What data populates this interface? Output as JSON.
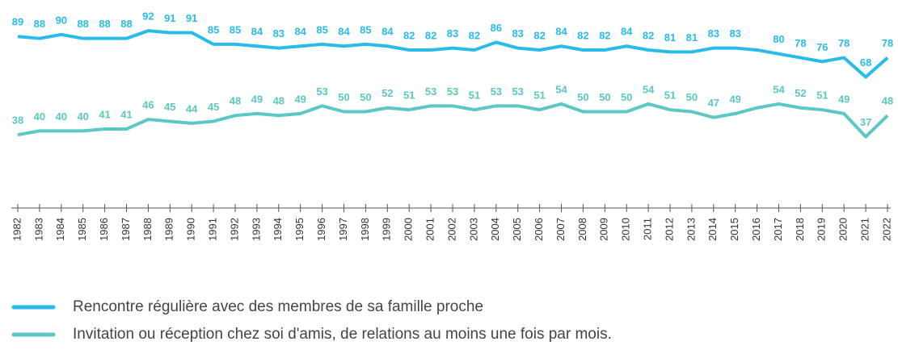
{
  "chart_data": {
    "type": "line",
    "x": [
      1982,
      1983,
      1984,
      1985,
      1986,
      1987,
      1988,
      1989,
      1990,
      1991,
      1992,
      1993,
      1994,
      1995,
      1996,
      1997,
      1998,
      1999,
      2000,
      2001,
      2002,
      2003,
      2004,
      2005,
      2006,
      2007,
      2008,
      2009,
      2010,
      2011,
      2012,
      2013,
      2014,
      2015,
      2016,
      2017,
      2018,
      2019,
      2020,
      2021,
      2022
    ],
    "xlim": [
      1982,
      2022
    ],
    "ylim": [
      0,
      100
    ],
    "grid": false,
    "legend": "bottom",
    "series": [
      {
        "name": "Rencontre régulière avec des membres de sa famille proche",
        "color": "#29bbe9",
        "values": [
          89,
          88,
          90,
          88,
          88,
          88,
          92,
          91,
          91,
          85,
          85,
          84,
          83,
          84,
          85,
          84,
          85,
          84,
          82,
          82,
          83,
          82,
          86,
          83,
          82,
          84,
          82,
          82,
          84,
          82,
          81,
          81,
          83,
          83,
          82,
          80,
          78,
          76,
          78,
          68,
          78
        ],
        "value_labels": [
          "89",
          "88",
          "90",
          "88",
          "88",
          "88",
          "92",
          "91",
          "91",
          "85",
          "85",
          "84",
          "83",
          "84",
          "85",
          "84",
          "85",
          "84",
          "82",
          "82",
          "83",
          "82",
          "86",
          "83",
          "82",
          "84",
          "82",
          "82",
          "84",
          "82",
          "81",
          "81",
          "83",
          "83",
          null,
          "80",
          "78",
          "76",
          "78",
          "68",
          "78"
        ]
      },
      {
        "name": "Invitation ou réception chez soi d'amis, de relations au moins une fois par mois.",
        "color": "#5bc8c3",
        "values": [
          38,
          40,
          40,
          40,
          41,
          41,
          46,
          45,
          44,
          45,
          48,
          49,
          48,
          49,
          53,
          50,
          50,
          52,
          51,
          53,
          53,
          51,
          53,
          53,
          51,
          54,
          50,
          50,
          50,
          54,
          51,
          50,
          47,
          49,
          52,
          54,
          52,
          51,
          49,
          37,
          48
        ],
        "value_labels": [
          "38",
          "40",
          "40",
          "40",
          "41",
          "41",
          "46",
          "45",
          "44",
          "45",
          "48",
          "49",
          "48",
          "49",
          "53",
          "50",
          "50",
          "52",
          "51",
          "53",
          "53",
          "51",
          "53",
          "53",
          "51",
          "54",
          "50",
          "50",
          "50",
          "54",
          "51",
          "50",
          "47",
          "49",
          null,
          "54",
          "52",
          "51",
          "49",
          "37",
          "48"
        ]
      }
    ]
  }
}
